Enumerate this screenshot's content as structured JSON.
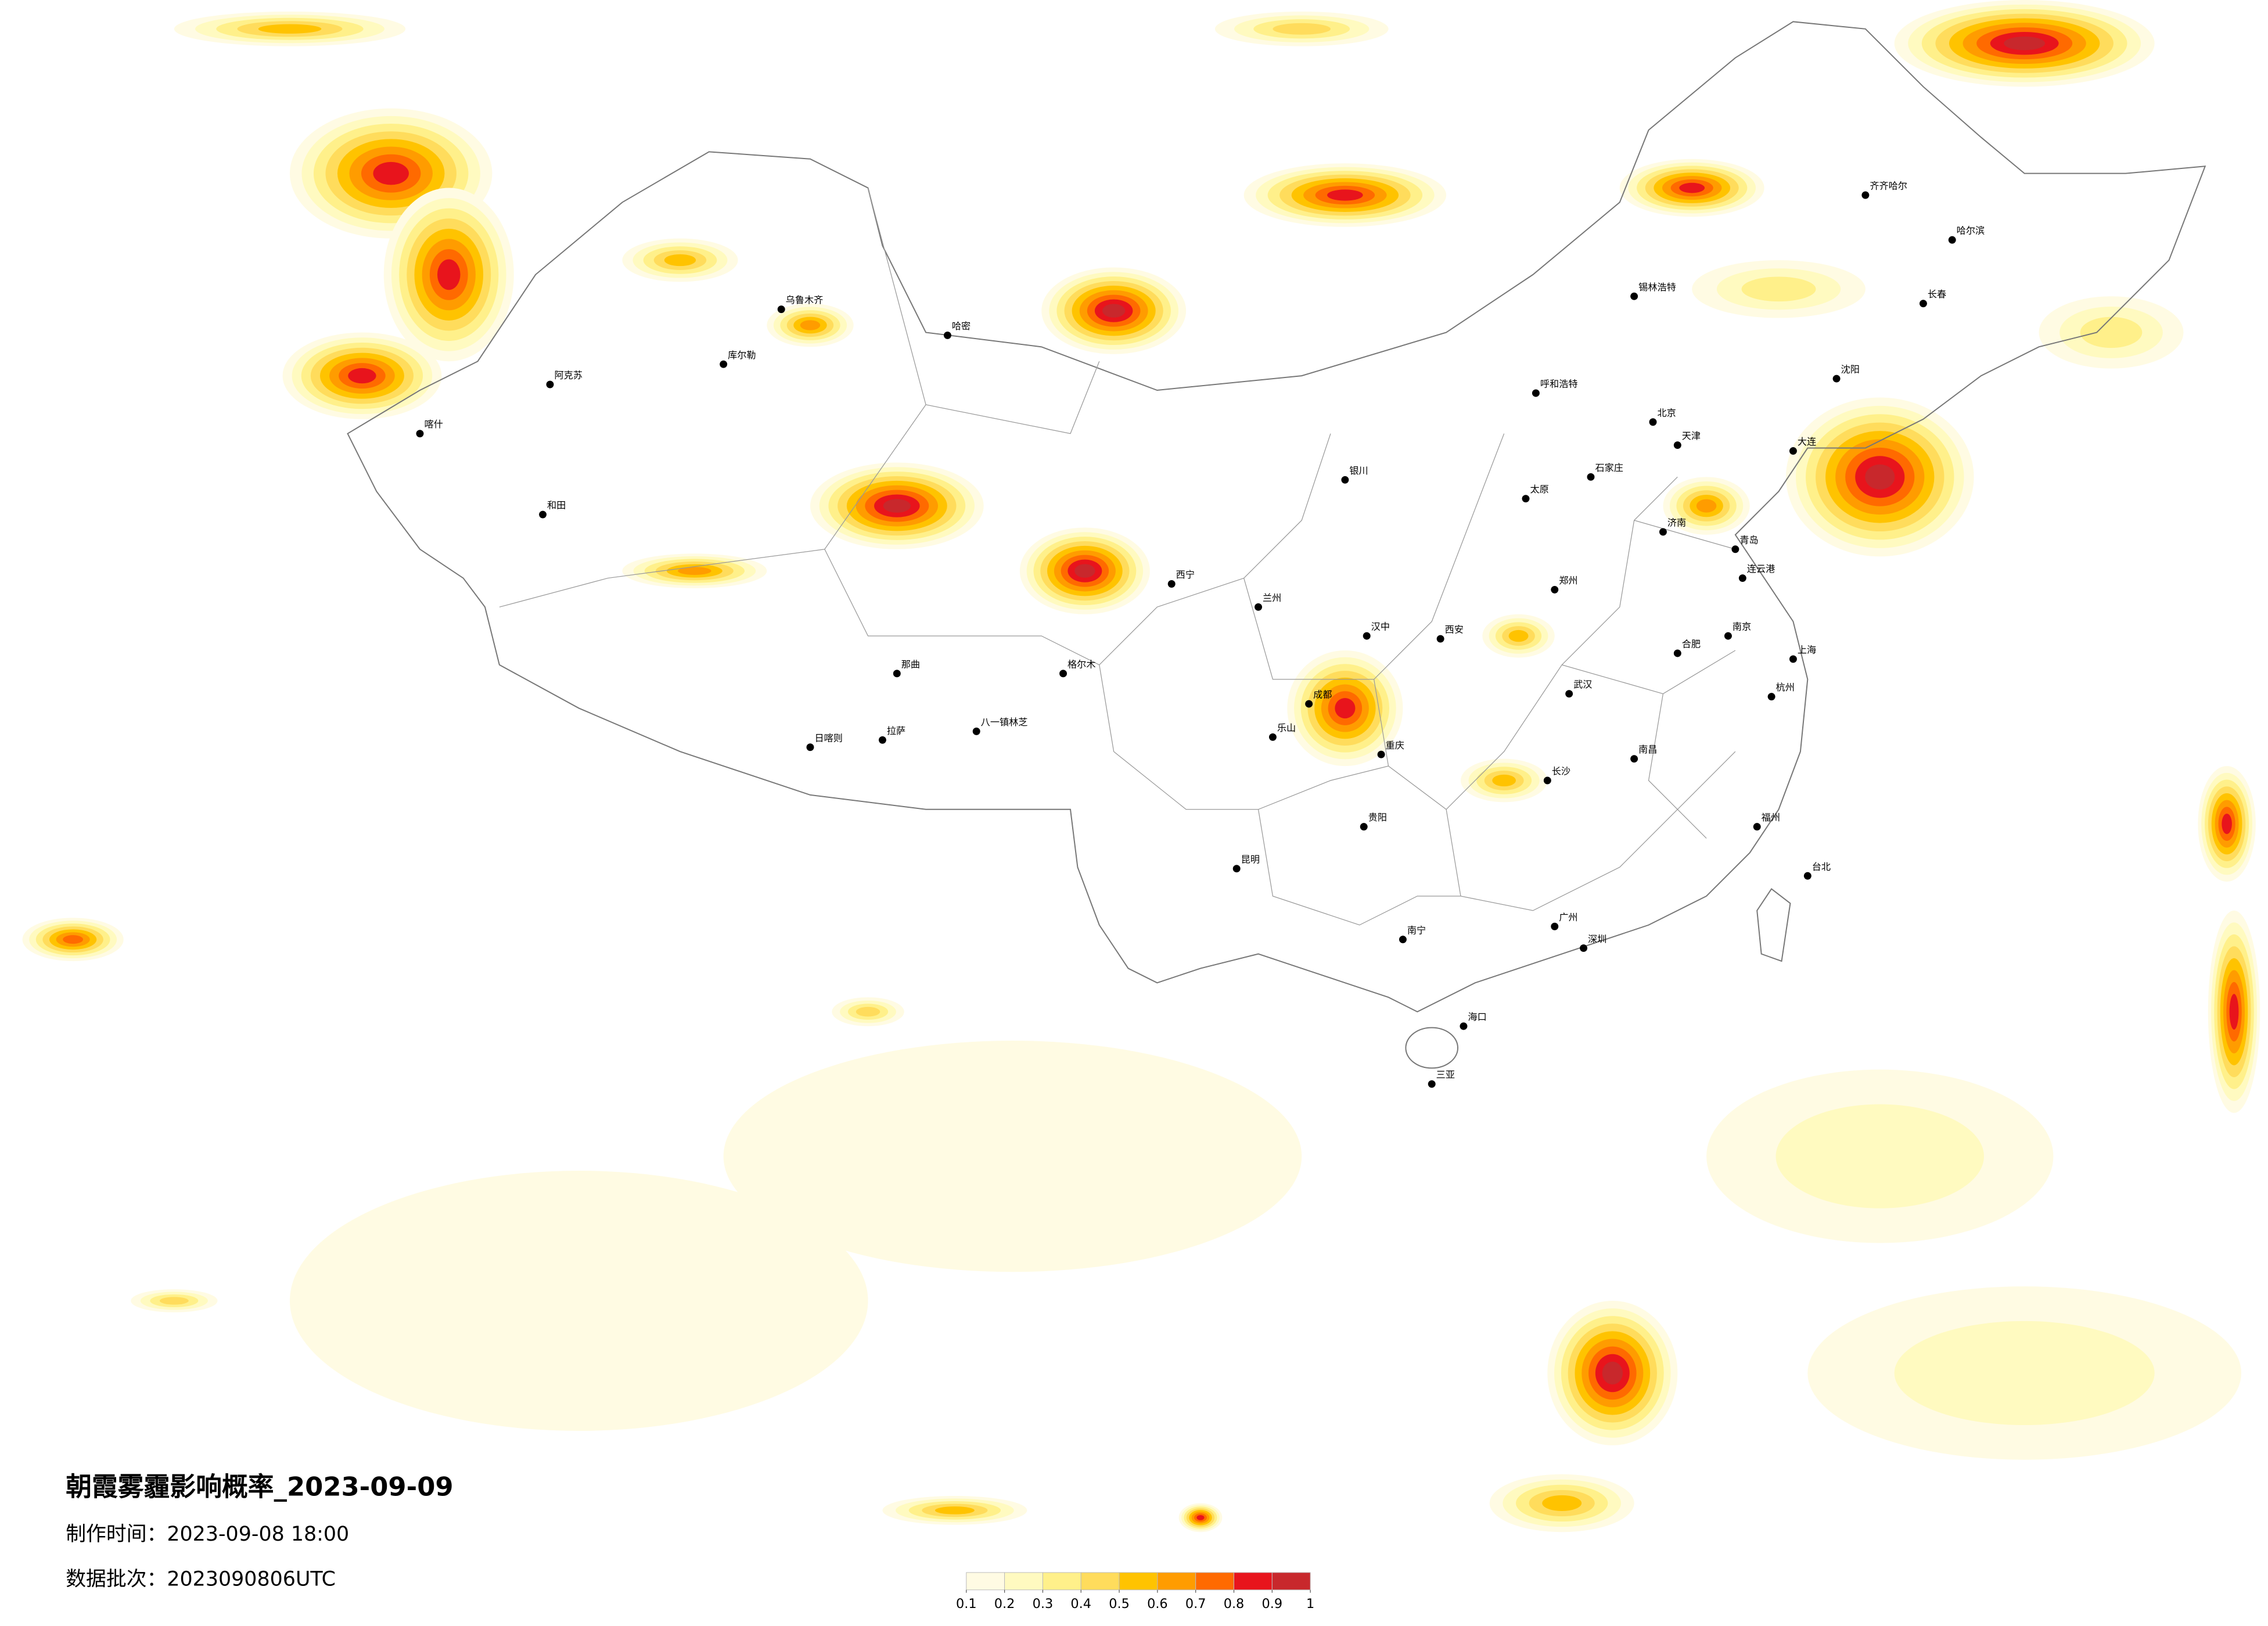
{
  "title": "朝霞雾霾影响概率_2023-09-09",
  "made_time": "制作时间：2023-09-08 18:00",
  "batch": "数据批次：2023090806UTC",
  "legend": {
    "ticks": [
      0.1,
      0.2,
      0.3,
      0.4,
      0.5,
      0.6,
      0.7,
      0.8,
      0.9,
      1
    ],
    "colors": [
      "#fffbe3",
      "#fffac0",
      "#fff08a",
      "#ffdc5c",
      "#ffc300",
      "#ff9c00",
      "#ff6a00",
      "#e8141c",
      "#c8282c"
    ]
  },
  "cities": [
    "北京",
    "天津",
    "石家庄",
    "太原",
    "呼和浩特",
    "济南",
    "郑州",
    "西安",
    "兰州",
    "西宁",
    "银川",
    "乌鲁木齐",
    "喀什",
    "和田",
    "阿克苏",
    "库尔勒",
    "哈密",
    "拉萨",
    "日喀则",
    "那曲",
    "八一镇林芝",
    "格尔木",
    "成都",
    "重庆",
    "贵阳",
    "昆明",
    "南宁",
    "海口",
    "三亚",
    "广州",
    "深圳",
    "长沙",
    "武汉",
    "南昌",
    "合肥",
    "南京",
    "上海",
    "杭州",
    "福州",
    "台北",
    "沈阳",
    "长春",
    "哈尔滨",
    "齐齐哈尔",
    "锡林浩特",
    "大连",
    "青岛",
    "连云港",
    "汉中",
    "乐山"
  ]
}
